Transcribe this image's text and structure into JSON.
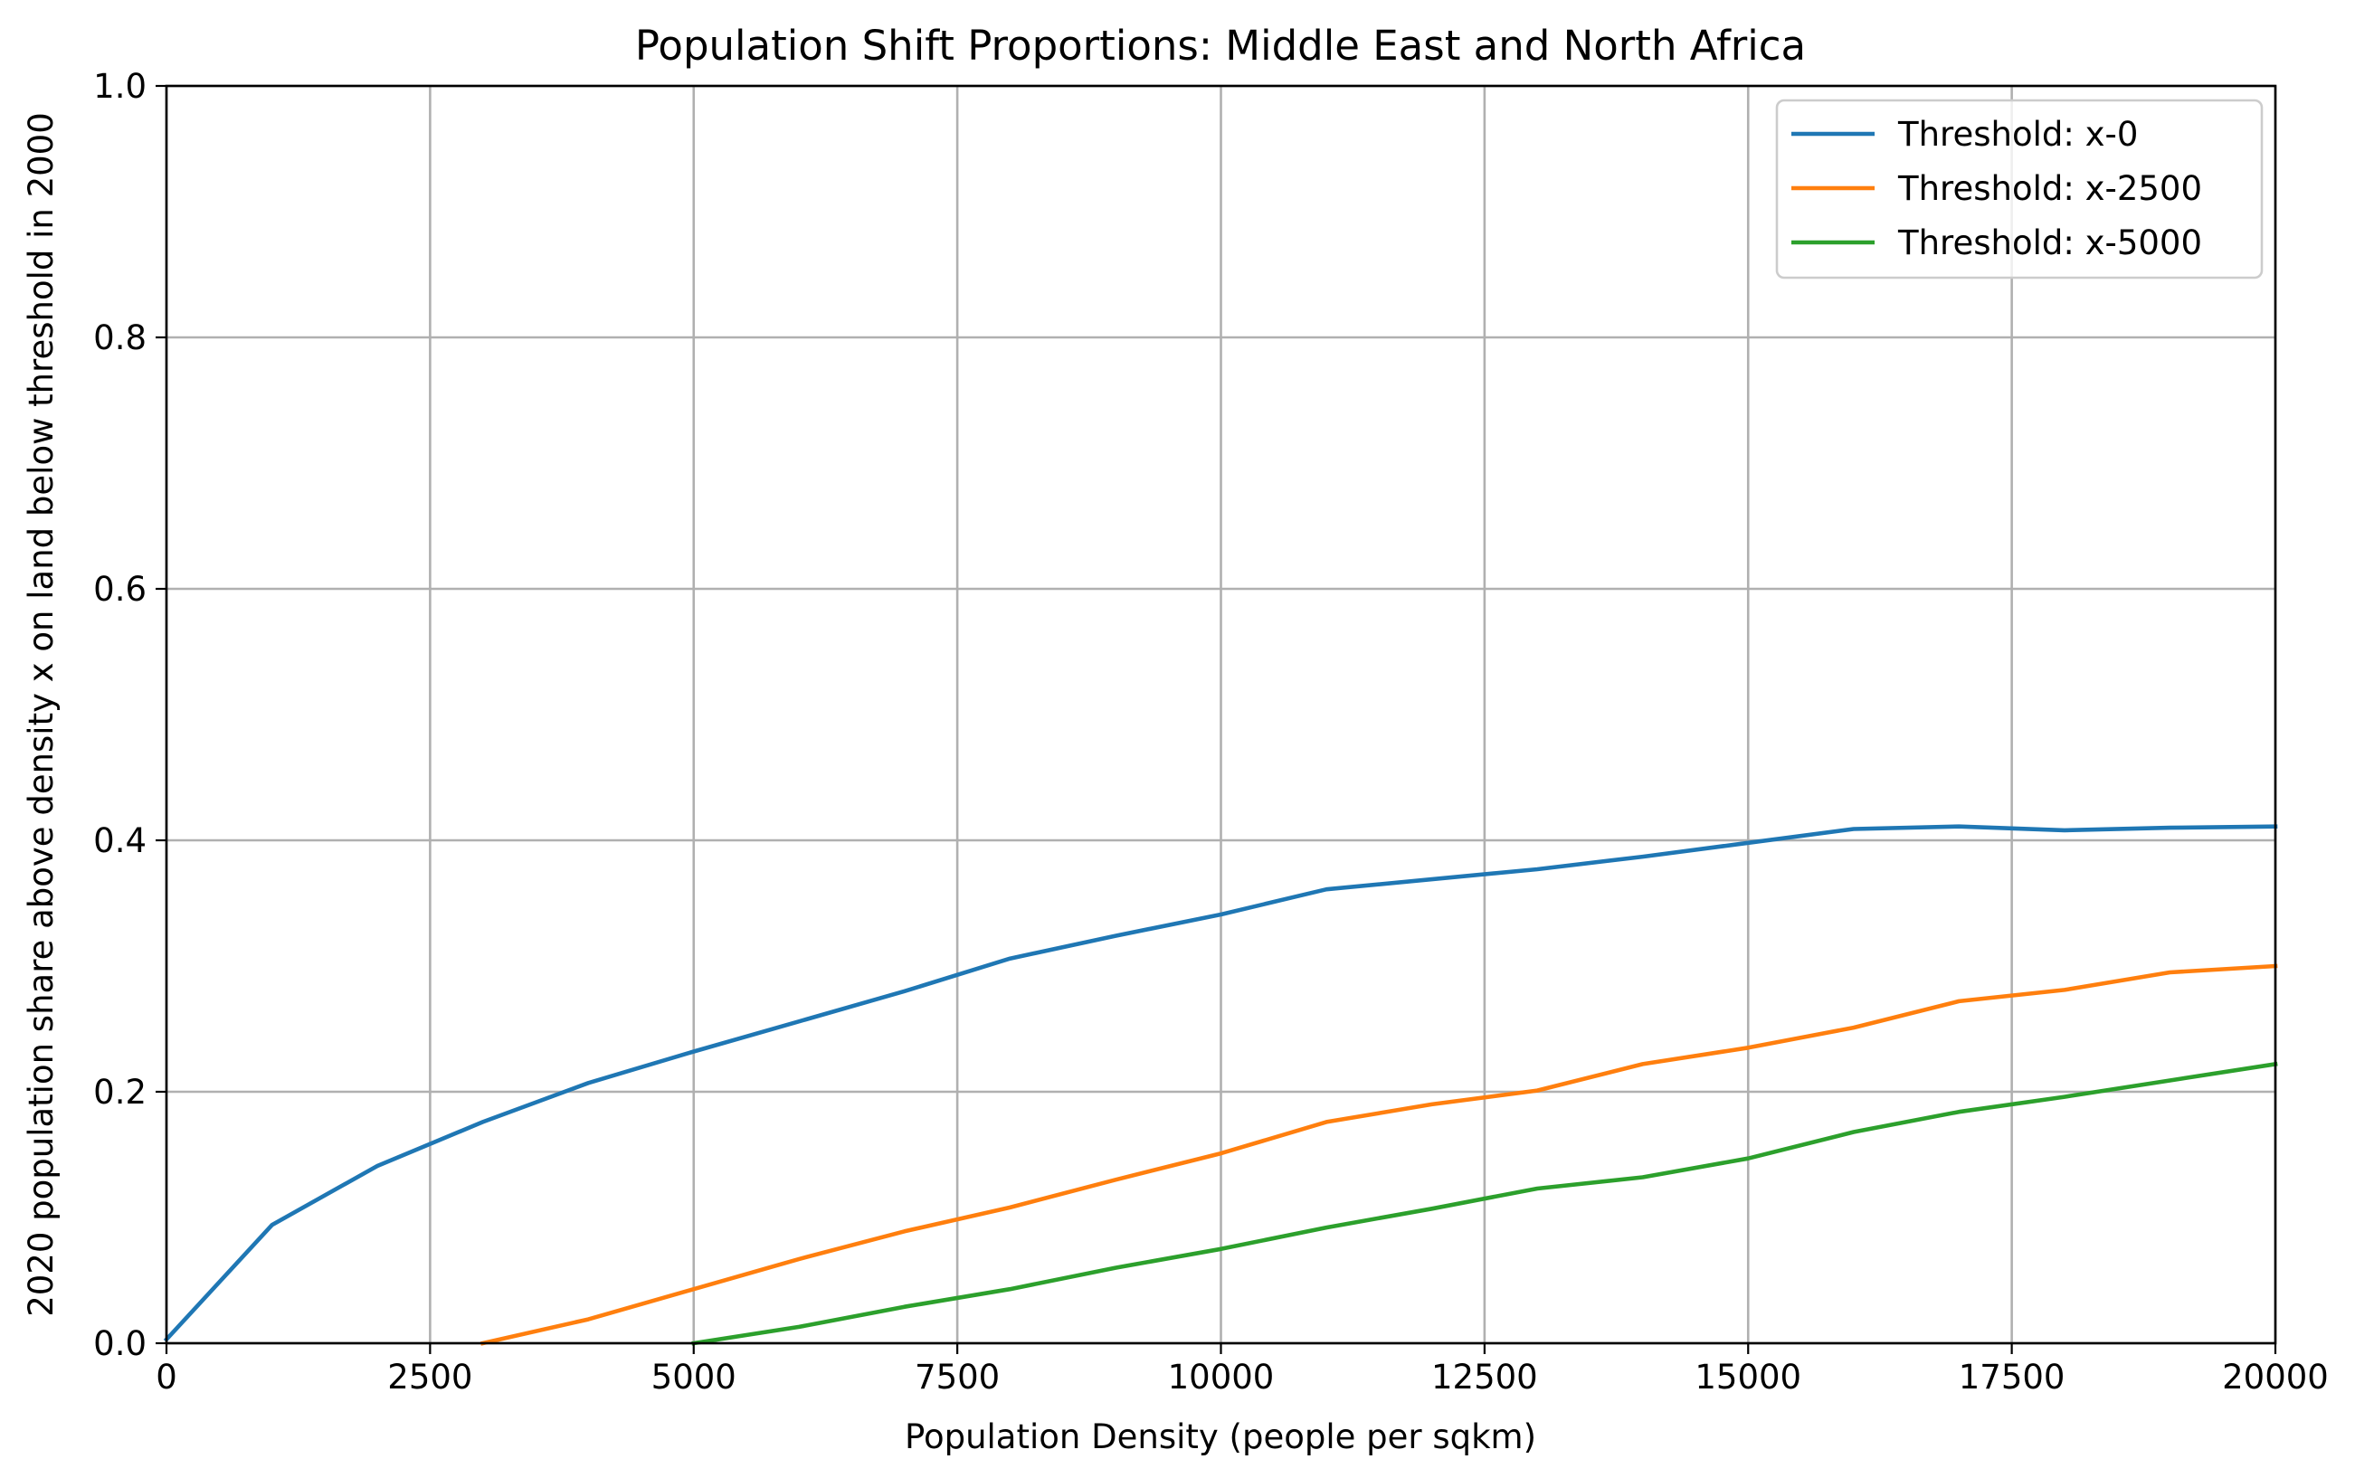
{
  "chart_data": {
    "type": "line",
    "title": "Population Shift Proportions: Middle East and North Africa",
    "xlabel": "Population Density (people per sqkm)",
    "ylabel": "2020 population share above density x on land below threshold in 2000",
    "xlim": [
      0,
      20000
    ],
    "ylim": [
      0,
      1.0
    ],
    "x_ticks": [
      "0",
      "2500",
      "5000",
      "7500",
      "10000",
      "12500",
      "15000",
      "17500",
      "20000"
    ],
    "y_ticks": [
      "0.0",
      "0.2",
      "0.4",
      "0.6",
      "0.8",
      "1.0"
    ],
    "grid": true,
    "legend_position": "top-right",
    "series": [
      {
        "name": "Threshold: x-0",
        "color": "#1f77b4",
        "x": [
          0,
          1000,
          2000,
          3000,
          4000,
          5000,
          6000,
          7000,
          8000,
          9000,
          10000,
          11000,
          12000,
          13000,
          14000,
          15000,
          16000,
          17000,
          18000,
          19000,
          20000
        ],
        "y": [
          0.003,
          0.094,
          0.141,
          0.176,
          0.207,
          0.232,
          0.256,
          0.28,
          0.306,
          0.324,
          0.341,
          0.361,
          0.369,
          0.377,
          0.387,
          0.398,
          0.409,
          0.411,
          0.408,
          0.41,
          0.411
        ]
      },
      {
        "name": "Threshold: x-2500",
        "color": "#ff7f0e",
        "x": [
          3000,
          4000,
          5000,
          6000,
          7000,
          8000,
          9000,
          10000,
          11000,
          12000,
          13000,
          14000,
          15000,
          16000,
          17000,
          18000,
          19000,
          20000
        ],
        "y": [
          0.0,
          0.019,
          0.043,
          0.067,
          0.089,
          0.108,
          0.13,
          0.151,
          0.176,
          0.19,
          0.201,
          0.222,
          0.235,
          0.251,
          0.272,
          0.281,
          0.295,
          0.3
        ]
      },
      {
        "name": "Threshold: x-5000",
        "color": "#2ca02c",
        "x": [
          5000,
          6000,
          7000,
          8000,
          9000,
          10000,
          11000,
          12000,
          13000,
          14000,
          15000,
          16000,
          17000,
          18000,
          19000,
          20000
        ],
        "y": [
          0.0,
          0.013,
          0.029,
          0.043,
          0.06,
          0.075,
          0.092,
          0.107,
          0.123,
          0.132,
          0.147,
          0.168,
          0.184,
          0.196,
          0.209,
          0.222
        ]
      }
    ]
  }
}
